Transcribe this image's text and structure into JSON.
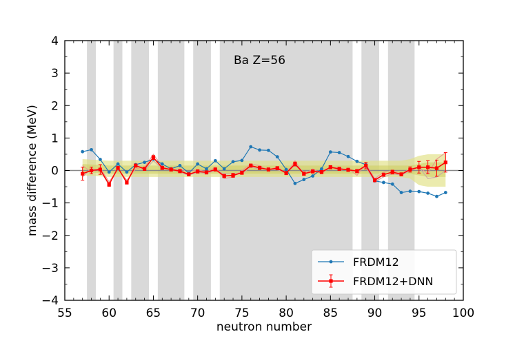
{
  "chart_data": {
    "type": "line",
    "xlabel": "neutron number",
    "ylabel": "mass difference (MeV)",
    "annotation": "Ba Z=56",
    "xlim": [
      55,
      100
    ],
    "ylim": [
      -4,
      4
    ],
    "xticks": [
      "55",
      "60",
      "65",
      "70",
      "75",
      "80",
      "85",
      "90",
      "95",
      "100"
    ],
    "yticks": [
      "−4",
      "−3",
      "−2",
      "−1",
      "0",
      "1",
      "2",
      "3",
      "4"
    ],
    "grid": false,
    "legend_position": "bottom-right",
    "shaded_regions": [
      [
        57.5,
        58.5
      ],
      [
        60.5,
        61.5
      ],
      [
        62.5,
        64.5
      ],
      [
        65.5,
        68.5
      ],
      [
        69.5,
        71.5
      ],
      [
        72.5,
        87.5
      ],
      [
        88.5,
        90.5
      ],
      [
        91.5,
        94.5
      ]
    ],
    "band_outer": {
      "x": [
        57,
        60,
        65,
        70,
        80,
        90,
        93,
        94,
        95,
        96,
        97,
        98
      ],
      "lower": [
        -0.15,
        -0.2,
        -0.2,
        -0.2,
        -0.2,
        -0.2,
        -0.2,
        -0.25,
        -0.45,
        -0.5,
        -0.5,
        -0.5
      ],
      "upper": [
        0.35,
        0.3,
        0.3,
        0.3,
        0.3,
        0.3,
        0.3,
        0.35,
        0.45,
        0.5,
        0.5,
        0.5
      ]
    },
    "band_inner": {
      "x": [
        57,
        60,
        65,
        70,
        80,
        90,
        94,
        95,
        96,
        97,
        98
      ],
      "lower": [
        -0.05,
        -0.1,
        -0.1,
        -0.1,
        -0.1,
        -0.1,
        -0.1,
        -0.15,
        -0.2,
        -0.2,
        -0.2
      ],
      "upper": [
        0.2,
        0.15,
        0.15,
        0.15,
        0.15,
        0.15,
        0.15,
        0.2,
        0.25,
        0.25,
        0.25
      ]
    },
    "series": [
      {
        "name": "FRDM12",
        "color": "#1f77b4",
        "x": [
          57,
          58,
          59,
          60,
          61,
          62,
          63,
          64,
          65,
          66,
          67,
          68,
          69,
          70,
          71,
          72,
          73,
          74,
          75,
          76,
          77,
          78,
          79,
          80,
          81,
          82,
          83,
          84,
          85,
          86,
          87,
          88,
          89,
          90,
          91,
          92,
          93,
          94,
          95,
          96,
          97,
          98
        ],
        "y": [
          0.58,
          0.64,
          0.34,
          -0.05,
          0.2,
          -0.05,
          0.18,
          0.25,
          0.35,
          0.2,
          0.05,
          0.15,
          -0.08,
          0.2,
          0.05,
          0.3,
          0.05,
          0.27,
          0.31,
          0.73,
          0.63,
          0.62,
          0.42,
          0.03,
          -0.4,
          -0.28,
          -0.17,
          0.05,
          0.57,
          0.55,
          0.43,
          0.28,
          0.18,
          -0.32,
          -0.37,
          -0.42,
          -0.68,
          -0.64,
          -0.65,
          -0.7,
          -0.8,
          -0.68
        ]
      },
      {
        "name": "FRDM12+DNN",
        "color": "#ff0000",
        "x": [
          57,
          58,
          59,
          60,
          61,
          62,
          63,
          64,
          65,
          66,
          67,
          68,
          69,
          70,
          71,
          72,
          73,
          74,
          75,
          76,
          77,
          78,
          79,
          80,
          81,
          82,
          83,
          84,
          85,
          86,
          87,
          88,
          89,
          90,
          91,
          92,
          93,
          94,
          95,
          96,
          97,
          98
        ],
        "y": [
          -0.1,
          0.0,
          0.03,
          -0.43,
          0.08,
          -0.37,
          0.15,
          0.05,
          0.4,
          0.08,
          0.03,
          -0.02,
          -0.12,
          -0.03,
          -0.06,
          0.03,
          -0.17,
          -0.15,
          -0.07,
          0.15,
          0.08,
          0.03,
          0.07,
          -0.08,
          0.2,
          -0.1,
          -0.03,
          -0.05,
          0.1,
          0.05,
          0.02,
          -0.02,
          0.15,
          -0.3,
          -0.13,
          -0.05,
          -0.12,
          0.03,
          0.1,
          0.1,
          0.07,
          0.25
        ],
        "yerr": [
          0.2,
          0.1,
          0.15,
          0.06,
          0.05,
          0.05,
          0.05,
          0.05,
          0.06,
          0.05,
          0.05,
          0.05,
          0.05,
          0.05,
          0.05,
          0.05,
          0.05,
          0.06,
          0.05,
          0.05,
          0.05,
          0.05,
          0.05,
          0.05,
          0.06,
          0.05,
          0.05,
          0.05,
          0.05,
          0.05,
          0.05,
          0.05,
          0.1,
          0.05,
          0.05,
          0.06,
          0.05,
          0.08,
          0.18,
          0.2,
          0.25,
          0.3
        ]
      },
      {
        "color": "#e8998e",
        "x": [
          57,
          58,
          59,
          60,
          61,
          62,
          63,
          64,
          65,
          66,
          67,
          68,
          69,
          70,
          71,
          72,
          73,
          74,
          75,
          76,
          77,
          78,
          79,
          80,
          81,
          82,
          83,
          84,
          85,
          86,
          87,
          88,
          89,
          90,
          91,
          92,
          93,
          94,
          95,
          96,
          97,
          98
        ],
        "y": [
          0.15,
          -0.05,
          0.08,
          -0.35,
          0.05,
          -0.3,
          0.05,
          0.1,
          0.5,
          0.12,
          0.0,
          0.05,
          -0.05,
          0.03,
          -0.05,
          0.1,
          -0.25,
          -0.2,
          0.0,
          0.2,
          0.15,
          0.0,
          0.12,
          -0.1,
          0.3,
          -0.12,
          0.05,
          -0.1,
          0.12,
          0.0,
          0.05,
          -0.15,
          0.2,
          -0.25,
          -0.05,
          0.0,
          -0.1,
          0.05,
          0.1,
          -0.1,
          0.35,
          0.55
        ]
      },
      {
        "color": "#c8a8a8",
        "x": [
          57,
          58,
          59,
          60,
          61,
          62,
          63,
          64,
          65,
          66,
          67,
          68,
          69,
          70,
          71,
          72,
          73,
          74,
          75,
          76,
          77,
          78,
          79,
          80,
          81,
          82,
          83,
          84,
          85,
          86,
          87,
          88,
          89,
          90,
          91,
          92,
          93,
          94,
          95,
          96,
          97,
          98
        ],
        "y": [
          -0.2,
          0.05,
          0.0,
          -0.45,
          0.1,
          -0.4,
          0.2,
          0.0,
          0.3,
          0.05,
          0.05,
          -0.05,
          -0.15,
          -0.05,
          -0.1,
          0.0,
          -0.1,
          -0.1,
          -0.1,
          0.1,
          0.05,
          0.05,
          0.02,
          -0.05,
          0.15,
          -0.05,
          -0.05,
          0.0,
          0.08,
          0.08,
          0.0,
          0.0,
          0.1,
          -0.35,
          -0.2,
          -0.1,
          -0.15,
          0.0,
          0.1,
          -0.25,
          -0.2,
          0.0
        ]
      }
    ]
  }
}
